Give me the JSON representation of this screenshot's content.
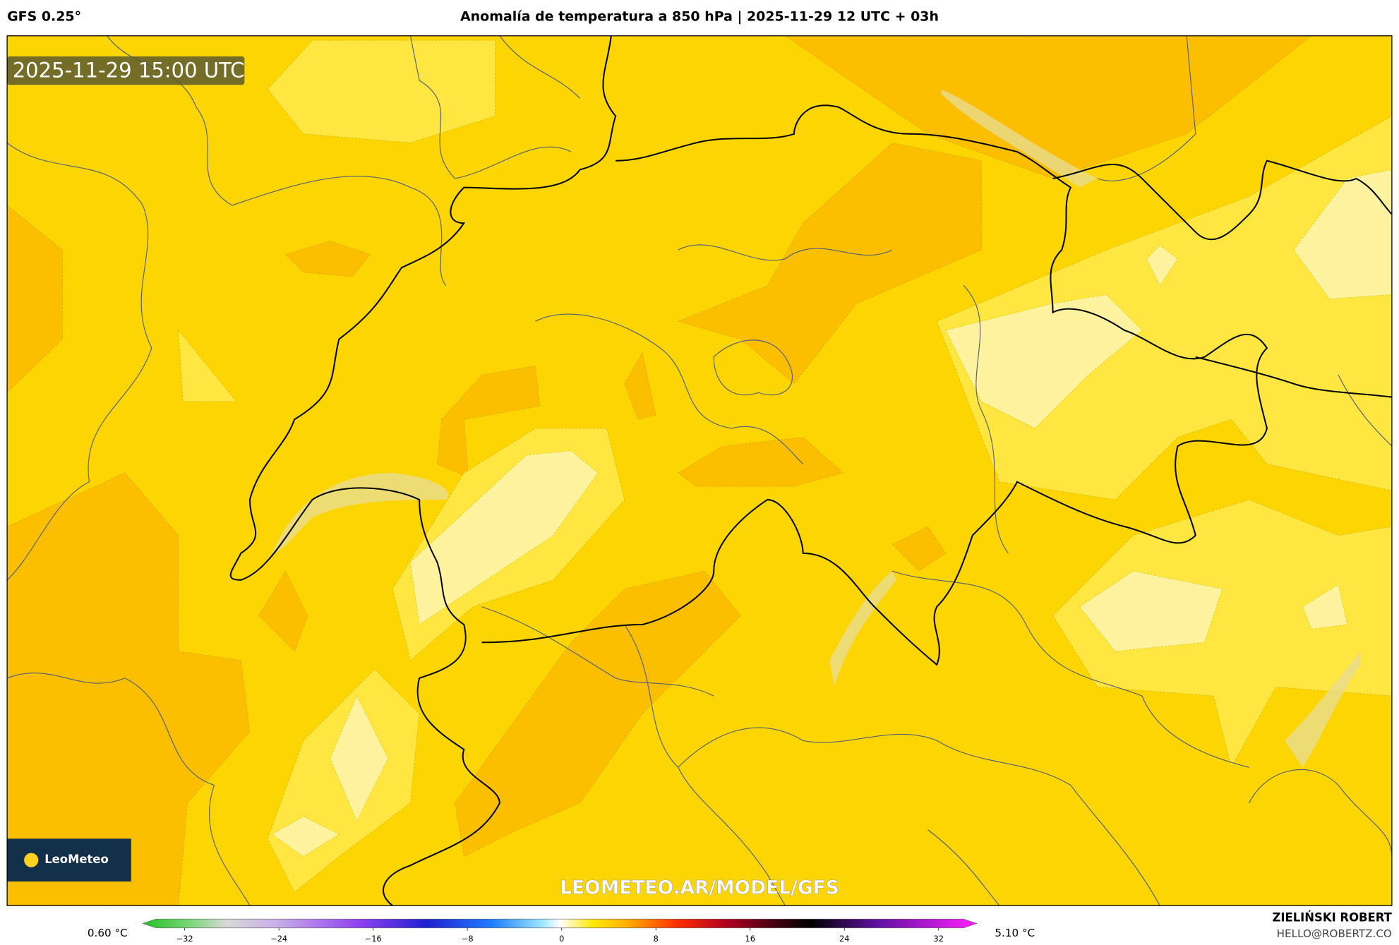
{
  "header": {
    "model": "GFS 0.25°",
    "title": "Anomalía de temperatura a 850 hPa | 2025-11-29 12 UTC + 03h"
  },
  "map": {
    "timestamp": "2025-11-29 15:00 UTC",
    "logo": "LeoMeteo",
    "watermark": "LEOMETEO.AR/MODEL/GFS"
  },
  "colorbar": {
    "min_label": "0.60 °C",
    "max_label": "5.10 °C",
    "ticks": [
      "−32",
      "−24",
      "−16",
      "−8",
      "0",
      "8",
      "16",
      "24",
      "32"
    ]
  },
  "credit": {
    "author": "ZIELIŃSKI ROBERT",
    "contact": "HELLO@ROBERTZ.CO"
  }
}
